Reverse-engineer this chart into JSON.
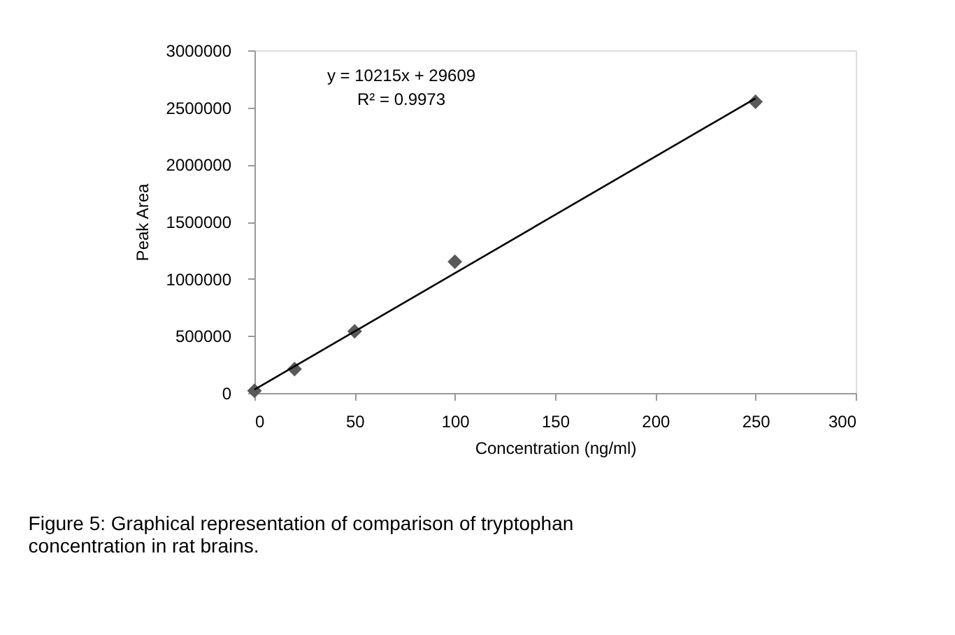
{
  "chart_data": {
    "type": "scatter",
    "xlabel": "Concentration (ng/ml)",
    "ylabel": "Peak Area",
    "xlim": [
      0,
      300
    ],
    "xticks": [
      0,
      50,
      100,
      150,
      200,
      250,
      300
    ],
    "ylim": [
      0,
      3000000
    ],
    "yticks": [
      0,
      500000,
      1000000,
      1500000,
      2000000,
      2500000,
      3000000
    ],
    "grid": false,
    "marker": "diamond",
    "series": [
      {
        "color": "#595959",
        "x": [
          0,
          20,
          50,
          100,
          250
        ],
        "values": [
          20000,
          210000,
          540000,
          1150000,
          2550000
        ]
      },
      {
        "type": "line",
        "color": "#000000",
        "x": [
          0,
          250
        ],
        "values": [
          30000,
          2580000
        ],
        "marker": "none"
      }
    ],
    "annotations": [
      "y = 10215x + 29609",
      "R² = 0.9973",
      "Figure 5: Graphical representation of comparison of tryptophan concentration in rat brains."
    ]
  }
}
